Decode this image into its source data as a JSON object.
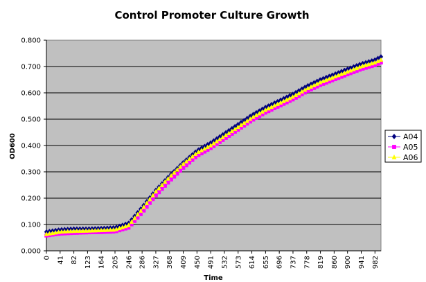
{
  "chart_data": {
    "type": "line",
    "title": "Control Promoter Culture Growth",
    "xlabel": "Time",
    "ylabel": "OD600",
    "ylim": [
      0,
      0.8
    ],
    "xlim": [
      0,
      1000
    ],
    "grid": true,
    "legend_position": "right",
    "plot_background": "#c0c0c0",
    "y_ticks": [
      "0.000",
      "0.100",
      "0.200",
      "0.300",
      "0.400",
      "0.500",
      "0.600",
      "0.700",
      "0.800"
    ],
    "x_ticks": [
      "0",
      "41",
      "82",
      "123",
      "164",
      "205",
      "246",
      "286",
      "327",
      "368",
      "409",
      "450",
      "491",
      "532",
      "573",
      "614",
      "655",
      "696",
      "737",
      "778",
      "819",
      "860",
      "900",
      "941",
      "982"
    ],
    "series": [
      {
        "name": "A04",
        "color": "#000080",
        "marker": "diamond",
        "x": [
          0,
          41,
          82,
          123,
          164,
          205,
          246,
          286,
          327,
          368,
          409,
          450,
          491,
          532,
          573,
          614,
          655,
          696,
          737,
          778,
          819,
          860,
          900,
          941,
          982,
          1000
        ],
        "values": [
          0.072,
          0.08,
          0.083,
          0.083,
          0.085,
          0.088,
          0.105,
          0.165,
          0.23,
          0.285,
          0.335,
          0.38,
          0.41,
          0.445,
          0.48,
          0.515,
          0.545,
          0.57,
          0.595,
          0.625,
          0.65,
          0.67,
          0.69,
          0.71,
          0.725,
          0.737
        ]
      },
      {
        "name": "A05",
        "color": "#ff00ff",
        "marker": "square",
        "x": [
          0,
          41,
          82,
          123,
          164,
          205,
          246,
          286,
          327,
          368,
          409,
          450,
          491,
          532,
          573,
          614,
          655,
          696,
          737,
          778,
          819,
          860,
          900,
          941,
          982,
          1000
        ],
        "values": [
          0.058,
          0.065,
          0.068,
          0.07,
          0.071,
          0.073,
          0.088,
          0.145,
          0.21,
          0.265,
          0.315,
          0.36,
          0.39,
          0.425,
          0.46,
          0.495,
          0.525,
          0.55,
          0.575,
          0.605,
          0.63,
          0.65,
          0.67,
          0.69,
          0.705,
          0.715
        ]
      },
      {
        "name": "A06",
        "color": "#ffff00",
        "marker": "triangle",
        "x": [
          0,
          41,
          82,
          123,
          164,
          205,
          246,
          286,
          327,
          368,
          409,
          450,
          491,
          532,
          573,
          614,
          655,
          696,
          737,
          778,
          819,
          860,
          900,
          941,
          982,
          1000
        ],
        "values": [
          0.063,
          0.072,
          0.075,
          0.076,
          0.078,
          0.08,
          0.097,
          0.158,
          0.225,
          0.28,
          0.33,
          0.372,
          0.4,
          0.435,
          0.47,
          0.505,
          0.535,
          0.56,
          0.585,
          0.615,
          0.64,
          0.66,
          0.68,
          0.7,
          0.715,
          0.725
        ]
      }
    ]
  }
}
